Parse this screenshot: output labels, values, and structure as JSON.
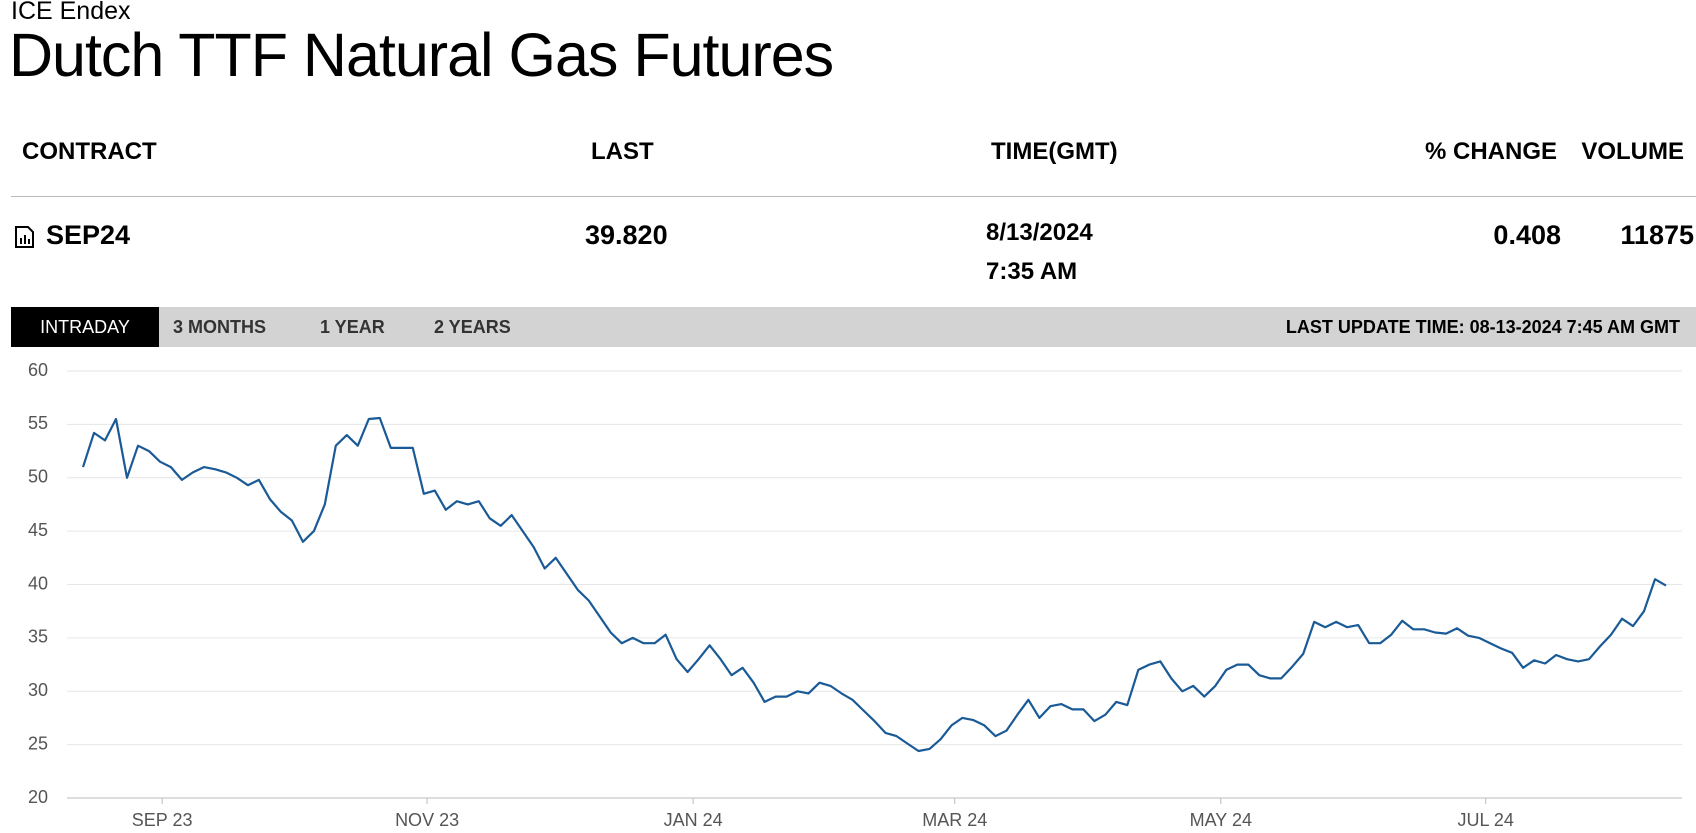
{
  "header": {
    "exchange": "ICE Endex",
    "title": "Dutch TTF Natural Gas Futures"
  },
  "table": {
    "columns": [
      "CONTRACT",
      "LAST",
      "TIME(GMT)",
      "% CHANGE",
      "VOLUME"
    ],
    "row": {
      "contract": "SEP24",
      "last": "39.820",
      "date": "8/13/2024",
      "time": "7:35 AM",
      "change": "0.408",
      "volume": "11875"
    }
  },
  "tabs": [
    "INTRADAY",
    "3 MONTHS",
    "1 YEAR",
    "2 YEARS"
  ],
  "last_update": "LAST UPDATE TIME: 08-13-2024 7:45 AM GMT",
  "chart_data": {
    "type": "line",
    "color": "#1a5a96",
    "grid": true,
    "values": [
      51,
      54.2,
      53.5,
      55.5,
      50,
      53,
      52.5,
      51.5,
      51,
      49.8,
      50.5,
      51,
      50.8,
      50.5,
      50,
      49.3,
      49.8,
      48,
      46.8,
      46,
      44,
      45,
      47.5,
      53,
      54,
      53,
      55.5,
      55.6,
      52.8,
      52.8,
      52.8,
      48.5,
      48.8,
      47,
      47.8,
      47.5,
      47.8,
      46.2,
      45.5,
      46.5,
      45,
      43.5,
      41.5,
      42.5,
      41,
      39.5,
      38.5,
      37,
      35.5,
      34.5,
      35,
      34.5,
      34.5,
      35.3,
      33,
      31.8,
      33,
      34.3,
      33,
      31.5,
      32.2,
      30.8,
      29,
      29.5,
      29.5,
      30,
      29.8,
      30.8,
      30.5,
      29.8,
      29.2,
      28.2,
      27.2,
      26.1,
      25.8,
      25.1,
      24.4,
      24.6,
      25.5,
      26.8,
      27.5,
      27.3,
      26.8,
      25.8,
      26.3,
      27.8,
      29.2,
      27.5,
      28.6,
      28.8,
      28.3,
      28.3,
      27.2,
      27.8,
      29,
      28.7,
      32,
      32.5,
      32.8,
      31.2,
      30,
      30.5,
      29.5,
      30.5,
      32,
      32.5,
      32.5,
      31.5,
      31.2,
      31.2,
      32.3,
      33.5,
      36.5,
      36,
      36.5,
      36,
      36.2,
      34.5,
      34.5,
      35.3,
      36.6,
      35.8,
      35.8,
      35.5,
      35.4,
      35.9,
      35.2,
      35,
      34.5,
      34,
      33.6,
      32.2,
      32.9,
      32.6,
      33.4,
      33,
      32.8,
      33,
      34.2,
      35.3,
      36.8,
      36.1,
      37.5,
      40.5,
      39.9
    ],
    "xlim": [
      0,
      144
    ],
    "xticks": [
      {
        "value": 7.2,
        "label": "SEP 23"
      },
      {
        "value": 31.3,
        "label": "NOV 23"
      },
      {
        "value": 55.5,
        "label": "JAN 24"
      },
      {
        "value": 79.3,
        "label": "MAR 24"
      },
      {
        "value": 103.5,
        "label": "MAY 24"
      },
      {
        "value": 127.6,
        "label": "JUL 24"
      }
    ],
    "ylim": [
      20,
      60
    ],
    "yticks": [
      20,
      25,
      30,
      35,
      40,
      45,
      50,
      55,
      60
    ]
  }
}
